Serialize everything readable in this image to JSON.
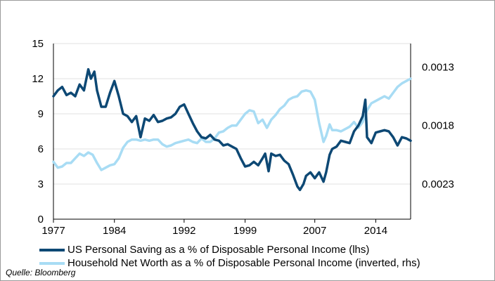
{
  "chart_data": {
    "type": "line",
    "title": "",
    "x_ticks": [
      "1977",
      "1984",
      "1992",
      "1999",
      "2007",
      "2014"
    ],
    "x_range": [
      1977,
      2018
    ],
    "left_axis": {
      "ticks": [
        "15",
        "12",
        "9",
        "6",
        "3",
        "0"
      ],
      "ylim": [
        0,
        15
      ]
    },
    "right_axis": {
      "ticks": [
        "0.0023",
        "0.0018",
        "0.0013"
      ],
      "ylim": [
        0.0011,
        0.0026
      ],
      "inverted": true
    },
    "series": [
      {
        "name": "US Personal Saving as a % of Disposable Personal Income (lhs)",
        "color": "#0d4874",
        "axis": "left",
        "x": [
          1977,
          1977.5,
          1978,
          1978.5,
          1979,
          1979.5,
          1980,
          1980.5,
          1981,
          1981.3,
          1981.7,
          1982,
          1982.5,
          1983,
          1983.5,
          1984,
          1984.5,
          1985,
          1985.5,
          1986,
          1986.5,
          1987,
          1987.5,
          1988,
          1988.5,
          1989,
          1989.5,
          1990,
          1990.5,
          1991,
          1991.5,
          1992,
          1992.5,
          1993,
          1993.5,
          1994,
          1994.5,
          1995,
          1995.5,
          1996,
          1996.5,
          1997,
          1997.5,
          1998,
          1998.5,
          1999,
          1999.5,
          2000,
          2000.5,
          2001,
          2001.3,
          2001.7,
          2002,
          2002.5,
          2003,
          2003.5,
          2004,
          2004.5,
          2005,
          2005.3,
          2005.7,
          2006,
          2006.5,
          2007,
          2007.5,
          2008,
          2008.3,
          2008.7,
          2009,
          2009.5,
          2010,
          2010.5,
          2011,
          2011.5,
          2012,
          2012.5,
          2012.8,
          2013,
          2013.5,
          2014,
          2014.5,
          2015,
          2015.5,
          2016,
          2016.5,
          2017,
          2017.5,
          2018
        ],
        "values": [
          10.5,
          11.0,
          11.3,
          10.6,
          10.8,
          10.5,
          11.5,
          11.0,
          12.8,
          12.0,
          12.6,
          11.0,
          9.6,
          9.6,
          10.8,
          11.8,
          10.5,
          9.0,
          8.8,
          8.3,
          8.8,
          7.0,
          8.6,
          8.4,
          8.9,
          8.3,
          8.4,
          8.6,
          8.7,
          9.0,
          9.6,
          9.8,
          9.0,
          8.2,
          7.5,
          7.0,
          6.9,
          7.2,
          6.8,
          6.7,
          6.3,
          6.4,
          6.2,
          6.0,
          5.2,
          4.5,
          4.6,
          4.9,
          4.6,
          5.2,
          5.6,
          4.1,
          5.6,
          5.4,
          5.5,
          5.0,
          4.7,
          3.8,
          2.8,
          2.5,
          3.0,
          3.7,
          4.0,
          3.5,
          4.0,
          3.2,
          4.0,
          5.5,
          6.0,
          6.2,
          6.7,
          6.6,
          6.5,
          7.5,
          8.0,
          8.8,
          10.2,
          7.0,
          6.5,
          7.4,
          7.5,
          7.6,
          7.5,
          7.0,
          6.3,
          7.0,
          6.9,
          6.7
        ]
      },
      {
        "name": "Household Net Worth as a % of Disposable Personal Income (inverted, rhs)",
        "color": "#a8dcf4",
        "axis": "right",
        "x": [
          1977,
          1977.5,
          1978,
          1978.5,
          1979,
          1979.5,
          1980,
          1980.5,
          1981,
          1981.5,
          1982,
          1982.5,
          1983,
          1983.5,
          1984,
          1984.5,
          1985,
          1985.5,
          1986,
          1986.5,
          1987,
          1987.5,
          1988,
          1988.5,
          1989,
          1989.5,
          1990,
          1990.5,
          1991,
          1991.5,
          1992,
          1992.5,
          1993,
          1993.5,
          1994,
          1994.5,
          1995,
          1995.5,
          1996,
          1996.5,
          1997,
          1997.5,
          1998,
          1998.5,
          1999,
          1999.5,
          2000,
          2000.5,
          2001,
          2001.5,
          2002,
          2002.5,
          2003,
          2003.5,
          2004,
          2004.5,
          2005,
          2005.5,
          2006,
          2006.5,
          2007,
          2007.5,
          2008,
          2008.3,
          2008.7,
          2009,
          2009.5,
          2010,
          2010.5,
          2011,
          2011.5,
          2012,
          2012.5,
          2013,
          2013.5,
          2014,
          2014.5,
          2015,
          2015.5,
          2016,
          2016.5,
          2017,
          2017.5,
          2018
        ],
        "values": [
          0.00211,
          0.00216,
          0.00215,
          0.00212,
          0.00212,
          0.00208,
          0.00204,
          0.00206,
          0.00203,
          0.00205,
          0.00212,
          0.00218,
          0.00216,
          0.00214,
          0.00213,
          0.00208,
          0.00199,
          0.00194,
          0.00192,
          0.00192,
          0.00193,
          0.00192,
          0.00193,
          0.00192,
          0.00192,
          0.00196,
          0.00198,
          0.00197,
          0.00195,
          0.00194,
          0.00193,
          0.00192,
          0.00194,
          0.00195,
          0.00191,
          0.00194,
          0.00194,
          0.00191,
          0.00186,
          0.00185,
          0.00182,
          0.0018,
          0.0018,
          0.00175,
          0.0017,
          0.00167,
          0.00168,
          0.00178,
          0.00175,
          0.00182,
          0.00175,
          0.00171,
          0.00166,
          0.00163,
          0.00158,
          0.00156,
          0.00155,
          0.00151,
          0.0015,
          0.00151,
          0.00158,
          0.00178,
          0.00194,
          0.00189,
          0.00179,
          0.00184,
          0.00184,
          0.00185,
          0.00183,
          0.00181,
          0.00177,
          0.00182,
          0.00177,
          0.00167,
          0.00161,
          0.00159,
          0.00157,
          0.00155,
          0.00157,
          0.00152,
          0.00147,
          0.00144,
          0.00142,
          0.0014
        ]
      }
    ]
  },
  "legend": {
    "item1": "US Personal Saving as a % of Disposable Personal Income (lhs)",
    "item2": "Household Net Worth as a % of Disposable Personal Income (inverted, rhs)"
  },
  "source": "Quelle: Bloomberg"
}
